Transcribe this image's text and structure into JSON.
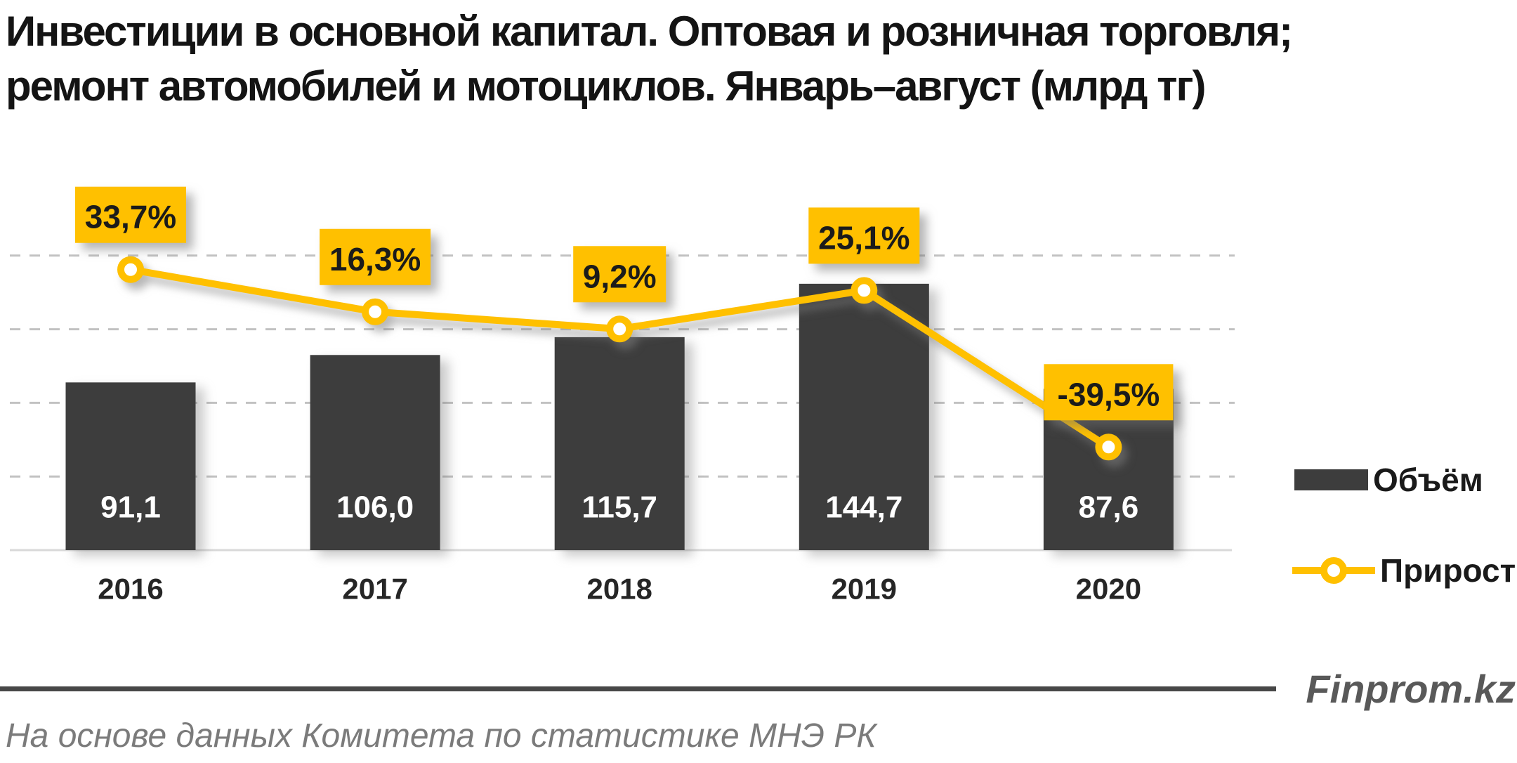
{
  "title": {
    "line1": "Инвестиции в основной капитал. Оптовая и розничная торговля;",
    "line2": "ремонт автомобилей и мотоциклов. Январь–август (млрд тг)"
  },
  "chart_data": {
    "type": "bar",
    "subtype": "bar-with-line-overlay",
    "title": "Инвестиции в основной капитал. Оптовая и розничная торговля; ремонт автомобилей и мотоциклов. Январь–август (млрд тг)",
    "unit": "млрд тг",
    "categories": [
      "2016",
      "2017",
      "2018",
      "2019",
      "2020"
    ],
    "series": [
      {
        "name": "Объём",
        "type": "bar",
        "values": [
          91.1,
          106.0,
          115.7,
          144.7,
          87.6
        ],
        "value_labels": [
          "91,1",
          "106,0",
          "115,7",
          "144,7",
          "87,6"
        ],
        "color": "#3d3d3d"
      },
      {
        "name": "Прирост",
        "type": "line",
        "values": [
          33.7,
          16.3,
          9.2,
          25.1,
          -39.5
        ],
        "value_labels": [
          "33,7%",
          "16,3%",
          "9,2%",
          "25,1%",
          "-39,5%"
        ],
        "color": "#ffc000"
      }
    ],
    "xlabel": "",
    "ylabel": "",
    "axes": {
      "y_labels_visible": false,
      "gridlines": "dashed-horizontal",
      "primary_gridline_step": 40,
      "secondary_gridline_step_pct": 30
    },
    "legend_position": "right"
  },
  "footer": {
    "brand": "Finprom.kz",
    "source": "На основе данных Комитета по статистике МНЭ РК"
  },
  "colors": {
    "bar": "#3d3d3d",
    "accent": "#ffc000",
    "marker_fill": "#ffffff",
    "callout_bg": "#ffc000",
    "callout_text": "#1b1b1b",
    "bar_value_text": "#ffffff",
    "year_text": "#262626",
    "grid": "#c2c2c2",
    "axis_line": "#d9d9d9",
    "rule": "#474747",
    "brand_text": "#595959",
    "source_text": "#7b7b7b",
    "title_text": "#141414",
    "legend_text": "#1a1a1a"
  }
}
